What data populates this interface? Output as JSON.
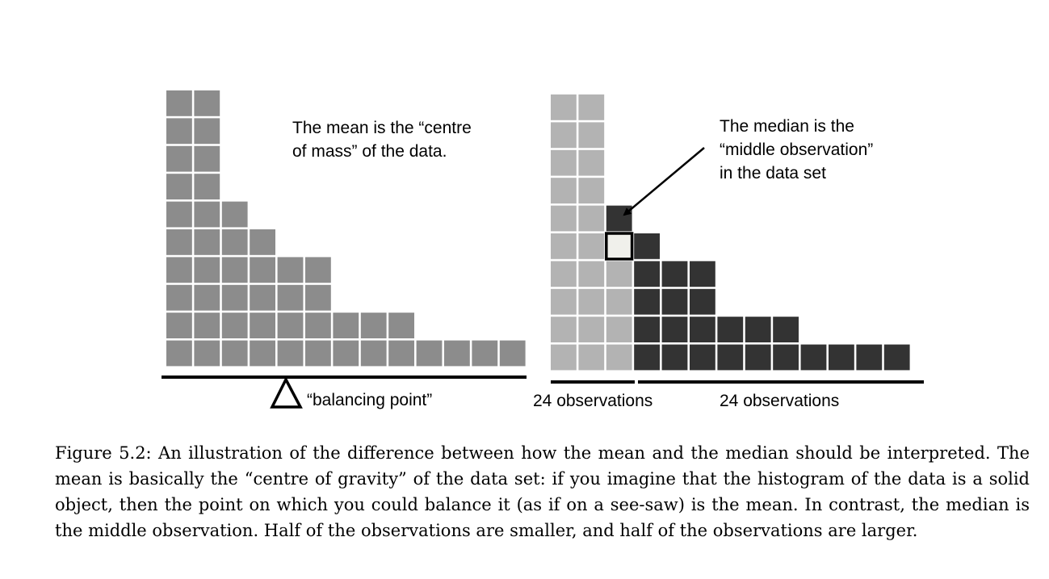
{
  "chart_data": [
    {
      "type": "histogram",
      "panel": "mean",
      "column_heights": [
        10,
        10,
        6,
        5,
        4,
        4,
        2,
        2,
        2,
        1,
        1,
        1,
        1
      ],
      "colors": {
        "block": "#8c8c8c"
      },
      "annotation": "The mean is the “centre of mass” of the data.",
      "annotation_lines": [
        "The mean is the “centre",
        "of mass” of the data."
      ],
      "fulcrum_label": "“balancing point”"
    },
    {
      "type": "histogram",
      "panel": "median",
      "column_heights": [
        10,
        10,
        6,
        5,
        4,
        4,
        2,
        2,
        2,
        1,
        1,
        1,
        1
      ],
      "split_count": 24,
      "colors": {
        "lower": "#b3b3b3",
        "upper": "#333333",
        "median": "#f0f0eb"
      },
      "annotation": "The median is the “middle observation” in the data set",
      "annotation_lines": [
        "The median is the",
        "“middle observation”",
        "in the data set"
      ],
      "left_label": "24 observations",
      "right_label": "24 observations"
    }
  ],
  "caption": "Figure 5.2: An illustration of the difference between how the mean and the median should be interpreted. The mean is basically the “centre of gravity” of the data set: if you imagine that the histogram of the data is a solid object, then the point on which you could balance it (as if on a see-saw) is the mean. In contrast, the median is the middle observation. Half of the observations are smaller, and half of the observations are larger."
}
